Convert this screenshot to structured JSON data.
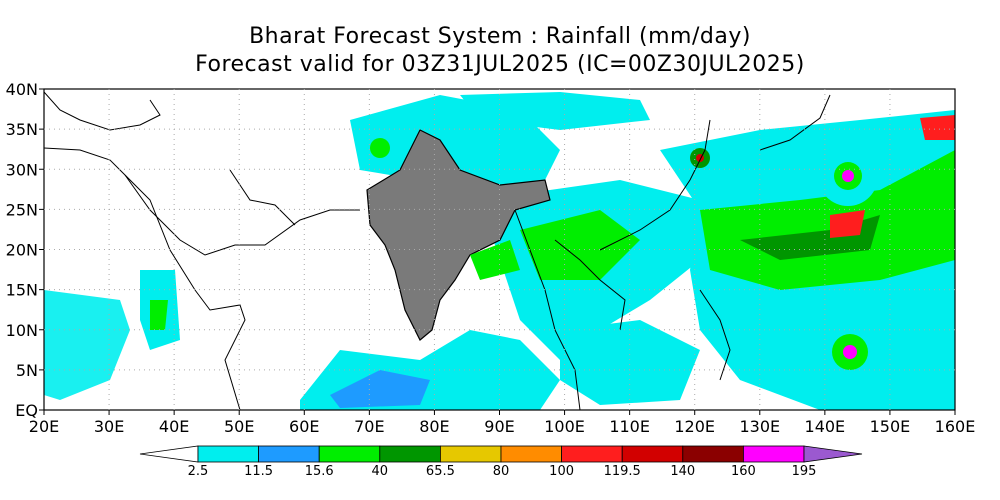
{
  "title_line1": "Bharat Forecast System : Rainfall (mm/day)",
  "title_line2": "Forecast valid for 03Z31JUL2025 (IC=00Z30JUL2025)",
  "lat_ticks": [
    "40N",
    "35N",
    "30N",
    "25N",
    "20N",
    "15N",
    "10N",
    "5N",
    "EQ"
  ],
  "lon_ticks": [
    "20E",
    "30E",
    "40E",
    "50E",
    "60E",
    "70E",
    "80E",
    "90E",
    "100E",
    "110E",
    "120E",
    "130E",
    "140E",
    "150E",
    "160E"
  ],
  "colorbar": {
    "labels": [
      "2.5",
      "11.5",
      "15.6",
      "40",
      "65.5",
      "80",
      "100",
      "119.5",
      "140",
      "160",
      "195"
    ],
    "colors": [
      "#ffffff",
      "#00eeee",
      "#1e9bff",
      "#00ee00",
      "#009600",
      "#e6c800",
      "#ff8c00",
      "#ff1e1e",
      "#d20000",
      "#8b0000",
      "#ff00ff",
      "#9b59d0"
    ]
  },
  "palette": {
    "ocean_land": "#ffffff",
    "coast": "#000000",
    "india_fill": "#7a7a7a",
    "grid": "#aaaaaa"
  }
}
